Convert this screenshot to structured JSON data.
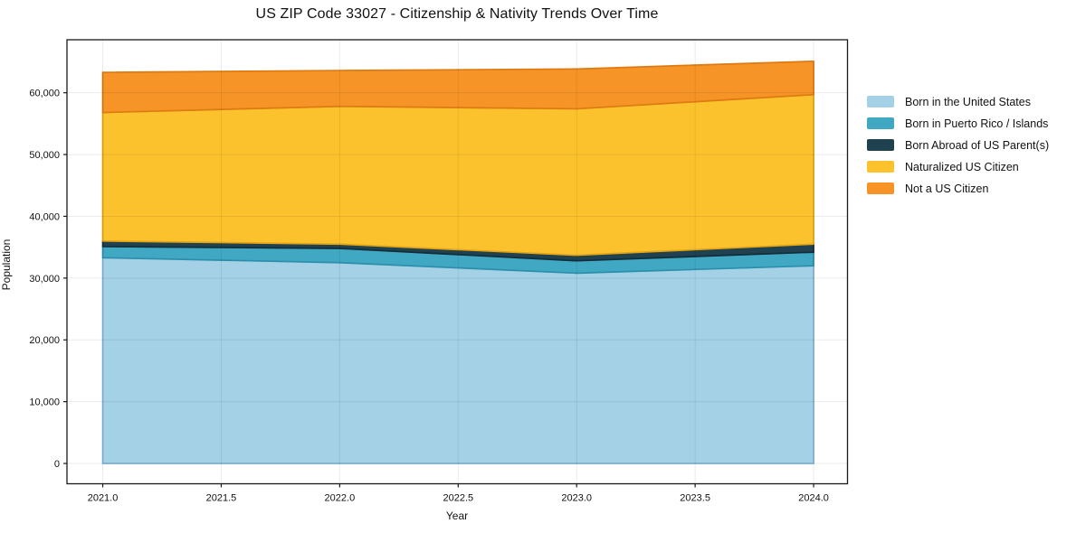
{
  "chart_data": {
    "type": "area",
    "stacked": true,
    "title": "US ZIP Code 33027 - Citizenship & Nativity Trends Over Time",
    "xlabel": "Year",
    "ylabel": "Population",
    "x": [
      2021,
      2022,
      2023,
      2024
    ],
    "series": [
      {
        "name": "Born in the United States",
        "color": "#a4d1e6",
        "edge_color": "#7fb8d4",
        "values": [
          33300,
          32500,
          30800,
          32000
        ]
      },
      {
        "name": "Born in Puerto Rico / Islands",
        "color": "#41a8c4",
        "edge_color": "#2b8fab",
        "values": [
          1800,
          2300,
          2000,
          2200
        ]
      },
      {
        "name": "Born Abroad of US Parent(s)",
        "color": "#1f4150",
        "edge_color": "#132d39",
        "values": [
          900,
          700,
          900,
          1300
        ]
      },
      {
        "name": "Naturalized US Citizen",
        "color": "#fcc22e",
        "edge_color": "#e3a514",
        "values": [
          20800,
          22300,
          23700,
          24200
        ]
      },
      {
        "name": "Not a US Citizen",
        "color": "#f79428",
        "edge_color": "#dd7b12",
        "values": [
          6500,
          5800,
          6450,
          5400
        ]
      }
    ],
    "stacked_totals": [
      63300,
      63600,
      63850,
      65100
    ],
    "xlim": [
      2020.849,
      2024.143
    ],
    "ylim": [
      -3290,
      68580
    ],
    "xtick_values": [
      2021.0,
      2021.5,
      2022.0,
      2022.5,
      2023.0,
      2023.5,
      2024.0
    ],
    "xtick_labels": [
      "2021.0",
      "2021.5",
      "2022.0",
      "2022.5",
      "2023.0",
      "2023.5",
      "2024.0"
    ],
    "ytick_values": [
      0,
      10000,
      20000,
      30000,
      40000,
      50000,
      60000
    ],
    "ytick_labels": [
      "0",
      "10,000",
      "20,000",
      "30,000",
      "40,000",
      "50,000",
      "60,000"
    ],
    "grid": true,
    "legend_position": "right"
  },
  "colors": {
    "grid_over": "rgba(0,0,0,0.08)",
    "plot_border": "#1a1a1a",
    "tick": "#1a1a1a",
    "text": "#111111"
  }
}
